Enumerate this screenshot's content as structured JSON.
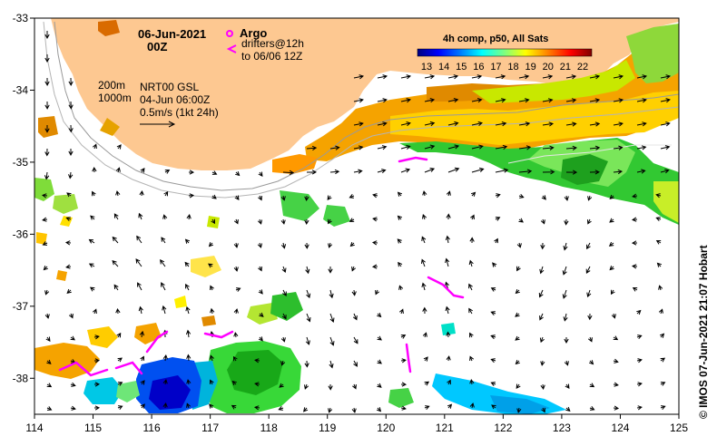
{
  "map": {
    "date_line1": "06-Jun-2021",
    "date_line2": "00Z",
    "legend_argo": "Argo",
    "legend_drifters_line1": "drifters@12h",
    "legend_drifters_line2": "to 06/06 12Z",
    "bathy_label_200": "200m",
    "bathy_label_1000": "1000m",
    "current_source_line1": "NRT00 GSL",
    "current_source_line2": "04-Jun 06:00Z",
    "current_scale_label": "0.5m/s (1kt 24h)",
    "colorbar_title": "4h comp, p50, All Sats",
    "credit": "© IMOS 07-Jun-2021 21:07 Hobart",
    "x_ticks": [
      "114",
      "115",
      "116",
      "117",
      "118",
      "119",
      "120",
      "121",
      "122",
      "123",
      "124",
      "125"
    ],
    "y_ticks": [
      "-33",
      "-34",
      "-35",
      "-36",
      "-37",
      "-38"
    ],
    "colorbar_ticks": [
      "13",
      "14",
      "15",
      "16",
      "17",
      "18",
      "19",
      "20",
      "21",
      "22"
    ],
    "extent": {
      "lon_min": 114,
      "lon_max": 125,
      "lat_max": -33,
      "lat_min": -38.5
    },
    "colors": {
      "land": "#fdc891",
      "coast": "#9a9a9a",
      "arrow": "#000000",
      "argo": "#ff00ff",
      "drifter": "#ff00ff",
      "colorbar": [
        "#00007f",
        "#0000ff",
        "#007fff",
        "#00ffff",
        "#7fff7f",
        "#ffff00",
        "#ff7f00",
        "#ff0000",
        "#7f0000"
      ]
    }
  }
}
